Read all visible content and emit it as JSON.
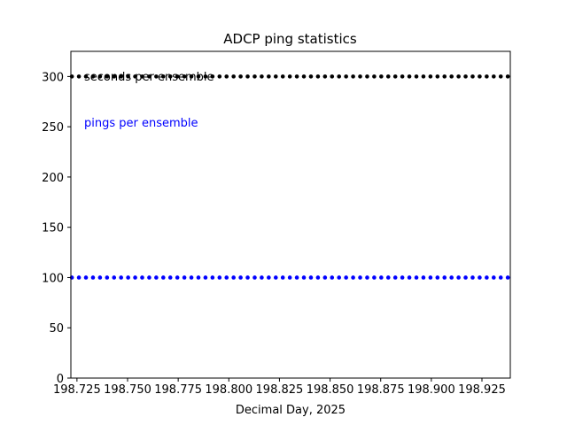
{
  "chart_data": {
    "type": "scatter",
    "title": "ADCP  ping statistics",
    "xlabel": "Decimal Day, 2025",
    "ylabel": "",
    "xlim": [
      198.722,
      198.939
    ],
    "ylim": [
      0,
      325
    ],
    "xticks": [
      198.725,
      198.75,
      198.775,
      198.8,
      198.825,
      198.85,
      198.875,
      198.9,
      198.925
    ],
    "xtick_labels": [
      "198.725",
      "198.750",
      "198.775",
      "198.800",
      "198.825",
      "198.850",
      "198.875",
      "198.900",
      "198.925"
    ],
    "yticks": [
      0,
      50,
      100,
      150,
      200,
      250,
      300
    ],
    "ytick_labels": [
      "0",
      "50",
      "100",
      "150",
      "200",
      "250",
      "300"
    ],
    "grid": false,
    "series": [
      {
        "name": "seconds per ensemble",
        "color": "#000000",
        "x_start": 198.7225,
        "x_end": 198.9392,
        "step": 0.003472,
        "y": 300
      },
      {
        "name": "pings per ensemble",
        "color": "#0000ff",
        "x_start": 198.7225,
        "x_end": 198.9392,
        "step": 0.003472,
        "y": 100
      }
    ],
    "annotations": [
      {
        "text": "seconds per ensemble",
        "color": "#000000"
      },
      {
        "text": "pings per ensemble",
        "color": "#0000ff"
      }
    ]
  }
}
